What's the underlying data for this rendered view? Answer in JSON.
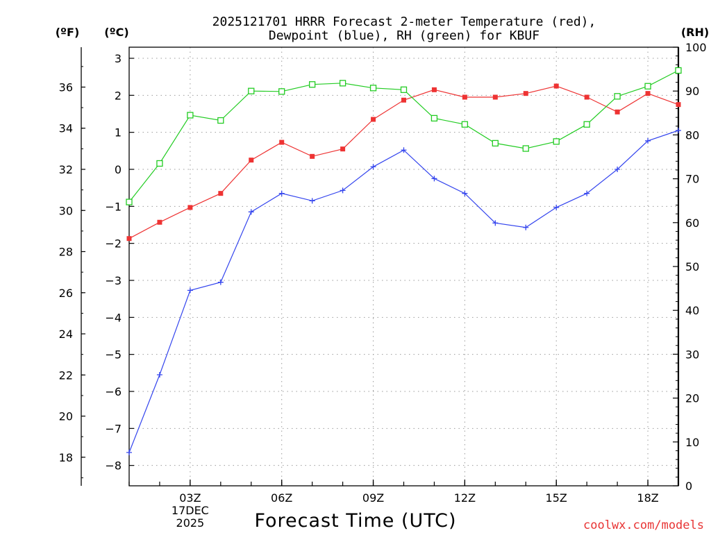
{
  "chart_data": {
    "type": "line",
    "title": [
      "2025121701 HRRR Forecast 2-meter Temperature (red),",
      "Dewpoint (blue), RH (green) for KBUF"
    ],
    "xlabel": "Forecast Time (UTC)",
    "x": [
      1,
      2,
      3,
      4,
      5,
      6,
      7,
      8,
      9,
      10,
      11,
      12,
      13,
      14,
      15,
      16,
      17,
      18,
      19
    ],
    "xlim": [
      1,
      19
    ],
    "xticks": [
      {
        "x": 3,
        "lines": [
          "03Z",
          "17DEC",
          "2025"
        ]
      },
      {
        "x": 6,
        "lines": [
          "06Z"
        ]
      },
      {
        "x": 9,
        "lines": [
          "09Z"
        ]
      },
      {
        "x": 12,
        "lines": [
          "12Z"
        ]
      },
      {
        "x": 15,
        "lines": [
          "15Z"
        ]
      },
      {
        "x": 18,
        "lines": [
          "18Z"
        ]
      }
    ],
    "axes": {
      "celsius": {
        "label": "(ºC)",
        "ylim": [
          -8.55,
          3.3
        ],
        "ticks": [
          -8,
          -7,
          -6,
          -5,
          -4,
          -3,
          -2,
          -1,
          0,
          1,
          2,
          3
        ]
      },
      "fahrenheit": {
        "label": "(ºF)",
        "ticks": [
          18,
          20,
          22,
          24,
          26,
          28,
          30,
          32,
          34,
          36
        ]
      },
      "rh": {
        "label": "(RH)",
        "ylim": [
          0,
          100
        ],
        "ticks": [
          0,
          10,
          20,
          30,
          40,
          50,
          60,
          70,
          80,
          90,
          100
        ]
      }
    },
    "series": [
      {
        "name": "Temperature",
        "axis": "celsius",
        "color": "#ee3333",
        "marker": "filled-square",
        "values": [
          -1.87,
          -1.43,
          -1.03,
          -0.65,
          0.25,
          0.73,
          0.35,
          0.55,
          1.35,
          1.87,
          2.15,
          1.95,
          1.95,
          2.05,
          2.25,
          1.95,
          1.55,
          2.05,
          1.75
        ]
      },
      {
        "name": "Dewpoint",
        "axis": "celsius",
        "color": "#3344ee",
        "marker": "plus",
        "values": [
          -7.65,
          -5.55,
          -3.27,
          -3.05,
          -1.15,
          -0.65,
          -0.85,
          -0.57,
          0.07,
          0.52,
          -0.25,
          -0.65,
          -1.45,
          -1.57,
          -1.03,
          -0.65,
          0.0,
          0.77,
          1.05
        ]
      },
      {
        "name": "RH",
        "axis": "rh",
        "color": "#22cc22",
        "marker": "open-square",
        "values": [
          64.7,
          73.5,
          84.5,
          83.3,
          90.0,
          89.9,
          91.5,
          91.8,
          90.7,
          90.3,
          83.8,
          82.4,
          78.1,
          76.9,
          78.5,
          82.4,
          88.8,
          91.1,
          94.7
        ]
      }
    ]
  },
  "credit": {
    "text": "coolwx.com/models",
    "color": "#e83333"
  }
}
